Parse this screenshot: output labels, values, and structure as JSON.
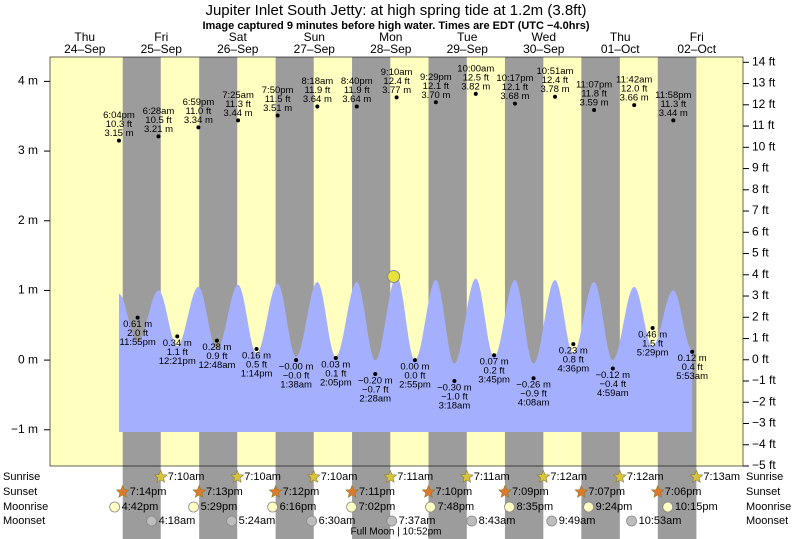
{
  "chart_data": {
    "type": "tide",
    "title": "Jupiter Inlet South Jetty: at high  spring tide at 1.2m (3.8ft)",
    "subtitle": "Image captured 9 minutes before high water. Times are EDT (UTC −4.0hrs)",
    "days": [
      "Thu",
      "Fri",
      "Sat",
      "Sun",
      "Mon",
      "Tue",
      "Wed",
      "Thu",
      "Fri"
    ],
    "dates": [
      "24–Sep",
      "25–Sep",
      "26–Sep",
      "27–Sep",
      "28–Sep",
      "29–Sep",
      "30–Sep",
      "01–Oct",
      "02–Oct"
    ],
    "ylim": [
      -1.52,
      4.35
    ],
    "yticks": [
      {
        "value": -1,
        "label": "−1 m"
      },
      {
        "value": 0,
        "label": "0 m"
      },
      {
        "value": 1,
        "label": "1 m"
      },
      {
        "value": 2,
        "label": "2 m"
      },
      {
        "value": 3,
        "label": "3 m"
      },
      {
        "value": 4,
        "label": "4 m"
      }
    ],
    "y2lim": [
      -5,
      14.25
    ],
    "y2ticks": [
      {
        "value": -5,
        "label": "−5 ft"
      },
      {
        "value": -4,
        "label": "−4 ft"
      },
      {
        "value": -3,
        "label": "−3 ft"
      },
      {
        "value": -2,
        "label": "−2 ft"
      },
      {
        "value": -1,
        "label": "−1 ft"
      },
      {
        "value": 0,
        "label": "0 ft"
      },
      {
        "value": 1,
        "label": "1 ft"
      },
      {
        "value": 2,
        "label": "2 ft"
      },
      {
        "value": 3,
        "label": "3 ft"
      },
      {
        "value": 4,
        "label": "4 ft"
      },
      {
        "value": 5,
        "label": "5 ft"
      },
      {
        "value": 6,
        "label": "6 ft"
      },
      {
        "value": 7,
        "label": "7 ft"
      },
      {
        "value": 8,
        "label": "8 ft"
      },
      {
        "value": 9,
        "label": "9 ft"
      },
      {
        "value": 10,
        "label": "10 ft"
      },
      {
        "value": 11,
        "label": "11 ft"
      },
      {
        "value": 12,
        "label": "12 ft"
      },
      {
        "value": 13,
        "label": "13 ft"
      },
      {
        "value": 14,
        "label": "14 ft"
      }
    ],
    "extremes": {
      "times": [
        "6:04pm",
        "11:55pm",
        "6:28am",
        "12:21pm",
        "6:59pm",
        "12:48am",
        "7:25am",
        "1:14pm",
        "7:50pm",
        "1:38am",
        "8:18am",
        "2:05pm",
        "8:40pm",
        "2:28am",
        "9:10am",
        "2:55pm",
        "9:29pm",
        "3:18am",
        "10:00am",
        "3:45pm",
        "10:17pm",
        "4:08am",
        "10:51am",
        "4:36pm",
        "11:07pm",
        "4:59am",
        "11:42am",
        "5:29pm",
        "11:58pm",
        "5:53am"
      ],
      "values": [
        3.15,
        0.61,
        3.21,
        0.34,
        3.34,
        0.28,
        3.44,
        0.16,
        3.51,
        0,
        3.64,
        0.03,
        3.64,
        -0.2,
        3.77,
        0,
        3.7,
        -0.3,
        3.82,
        0.07,
        3.68,
        -0.26,
        3.78,
        0.23,
        3.59,
        -0.12,
        3.66,
        0.46,
        3.44,
        0.12
      ],
      "value_labels": [
        "3.15 m",
        "0.61 m",
        "3.21 m",
        "0.34 m",
        "3.34 m",
        "0.28 m",
        "3.44 m",
        "0.16 m",
        "3.51 m",
        "−0.00 m",
        "3.64 m",
        "0.03 m",
        "3.64 m",
        "−0.20 m",
        "3.77 m",
        "0.00 m",
        "3.70 m",
        "−0.30 m",
        "3.82 m",
        "0.07 m",
        "3.68 m",
        "−0.26 m",
        "3.78 m",
        "0.23 m",
        "3.59 m",
        "−0.12 m",
        "3.66 m",
        "0.46 m",
        "3.44 m",
        "0.12 m"
      ],
      "ft_values": [
        10.3,
        2.0,
        10.5,
        1.1,
        11.0,
        0.9,
        11.3,
        0.5,
        11.5,
        0,
        11.9,
        0.1,
        11.9,
        -0.7,
        12.4,
        0,
        12.1,
        -1.0,
        12.5,
        0.2,
        12.1,
        -0.9,
        12.4,
        0.8,
        11.8,
        -0.4,
        12.0,
        1.5,
        11.3,
        0.4
      ],
      "ft_labels": [
        "10.3 ft",
        "2.0 ft",
        "10.5 ft",
        "1.1 ft",
        "11.0 ft",
        "0.9 ft",
        "11.3 ft",
        "0.5 ft",
        "11.5 ft",
        "−0.0 ft",
        "11.9 ft",
        "0.1 ft",
        "11.9 ft",
        "−0.7 ft",
        "12.4 ft",
        "0.0 ft",
        "12.1 ft",
        "−1.0 ft",
        "12.5 ft",
        "0.2 ft",
        "12.1 ft",
        "−0.9 ft",
        "12.4 ft",
        "0.8 ft",
        "11.8 ft",
        "−0.4 ft",
        "12.0 ft",
        "1.5 ft",
        "11.3 ft",
        "0.4 ft"
      ],
      "curve": [
        0.95,
        0.25,
        1.0,
        0.2,
        1.05,
        0.15,
        1.08,
        0.1,
        1.1,
        0.05,
        1.12,
        0.05,
        1.12,
        0.0,
        1.2,
        0.0,
        1.15,
        -0.05,
        1.17,
        0.05,
        1.15,
        -0.05,
        1.15,
        0.1,
        1.12,
        0.0,
        1.05,
        0.2,
        1.0,
        0.15
      ]
    },
    "current_level_m": 1.2,
    "row_labels": [
      "Sunrise",
      "Sunset",
      "Moonrise",
      "Moonset"
    ],
    "sunrise": [
      null,
      "7:10am",
      "7:10am",
      "7:10am",
      "7:11am",
      "7:11am",
      "7:12am",
      "7:12am",
      "7:13am"
    ],
    "sunset": [
      "7:14pm",
      "7:13pm",
      "7:12pm",
      "7:11pm",
      "7:10pm",
      "7:09pm",
      "7:07pm",
      "7:06pm",
      null
    ],
    "moonrise": [
      "4:42pm",
      "5:29pm",
      "6:16pm",
      "7:02pm",
      "7:48pm",
      "8:35pm",
      "9:24pm",
      "10:15pm",
      null
    ],
    "moonset": [
      null,
      "4:18am",
      "5:24am",
      "6:30am",
      "7:37am",
      "8:43am",
      "9:49am",
      "10:53am",
      null
    ],
    "moon_phase": "Full Moon | 10:52pm"
  }
}
